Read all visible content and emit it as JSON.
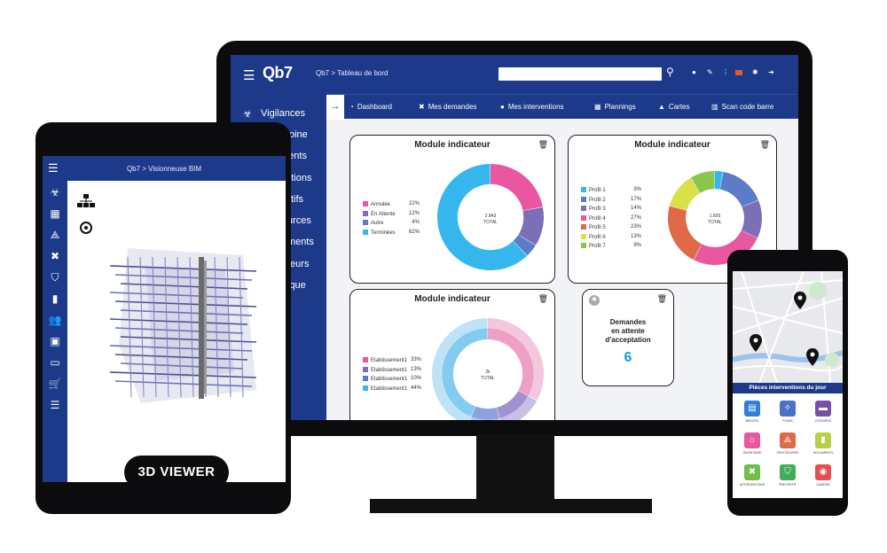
{
  "desktop": {
    "app": {
      "logo": "Qb7",
      "breadcrumb": "Qb7 > Tableau de bord",
      "search_placeholder": ""
    },
    "topbar_icons": [
      "chat-icon",
      "edit-icon",
      "more-icon",
      "flag-icon",
      "gear-icon",
      "logout-icon"
    ],
    "sidebar": [
      {
        "label": "Vigilances",
        "icon": "biohazard-icon"
      },
      {
        "label": "oine"
      },
      {
        "label": "ments"
      },
      {
        "label": "entions"
      },
      {
        "label": "tifs"
      },
      {
        "label": "urces"
      },
      {
        "label": "ments"
      },
      {
        "label": "teurs"
      },
      {
        "label": "ique"
      }
    ],
    "tabs": [
      {
        "label": "Dashboard",
        "icon": "dashboard-icon"
      },
      {
        "label": "Mes demandes",
        "icon": "tools-icon"
      },
      {
        "label": "Mes interventions",
        "icon": "user-gear-icon"
      },
      {
        "label": "Plannings",
        "icon": "calendar-icon"
      },
      {
        "label": "Cartes",
        "icon": "map-icon"
      },
      {
        "label": "Scan code barre",
        "icon": "barcode-icon"
      }
    ],
    "cards": [
      {
        "title": "Module indicateur",
        "center_value": "2.843",
        "center_label": "TOTAL",
        "chart_data": {
          "type": "pie",
          "categories": [
            "Annulée",
            "En Attente",
            "Autre",
            "Terminées"
          ],
          "values": [
            22,
            12,
            4,
            62
          ],
          "colors": [
            "#e8579f",
            "#7c6fb8",
            "#5b7dc8",
            "#35b7ee"
          ]
        }
      },
      {
        "title": "Module indicateur",
        "center_value": "1.605",
        "center_label": "TOTAL",
        "chart_data": {
          "type": "pie",
          "categories": [
            "Profil 1",
            "Profil 2",
            "Profil 3",
            "Profil 4",
            "Profil 5",
            "Profil 6",
            "Profil 7"
          ],
          "values": [
            3,
            17,
            14,
            27,
            23,
            13,
            9
          ],
          "colors": [
            "#35b7ee",
            "#5b7dc8",
            "#7c6fb8",
            "#e8579f",
            "#e06a48",
            "#d8e04a",
            "#8ac64a"
          ]
        }
      },
      {
        "title": "Module indicateur",
        "center_value": "2k",
        "center_label": "TOTAL",
        "chart_data": {
          "type": "pie",
          "categories": [
            "Etablissement1",
            "Etablissement1",
            "Etablissement1",
            "Etablissement1"
          ],
          "values": [
            33,
            13,
            10,
            44
          ],
          "colors": [
            "#e8579f",
            "#7c6fb8",
            "#5b7dc8",
            "#35b7ee"
          ]
        }
      }
    ],
    "demandes": {
      "line1": "Demandes",
      "line2": "en attente",
      "line3": "d'acceptation",
      "count": "6"
    }
  },
  "tablet": {
    "breadcrumb": "Qb7 > Visionneuse BIM",
    "side_icons": [
      "biohazard-icon",
      "building-icon",
      "compass-icon",
      "tools-icon",
      "shield-icon",
      "document-icon",
      "users-icon",
      "box-icon",
      "money-icon",
      "cart-icon",
      "list-icon"
    ],
    "viewer_button": "3D VIEWER"
  },
  "phone": {
    "section_title": "Pièces interventions du jour",
    "items": [
      {
        "label": "BADGES",
        "icon": "clipboard-icon",
        "color": "#2f7fd8"
      },
      {
        "label": "PLANS",
        "icon": "link-icon",
        "color": "#4a70c8"
      },
      {
        "label": "DOSSIERS",
        "icon": "folder-icon",
        "color": "#7a4ea6"
      },
      {
        "label": "INVENTAIRE",
        "icon": "warehouse-icon",
        "color": "#e8579f"
      },
      {
        "label": "PROCEDURES",
        "icon": "compass-icon",
        "color": "#e06a48"
      },
      {
        "label": "DOCUMENTS",
        "icon": "document-icon",
        "color": "#b8cf4a"
      },
      {
        "label": "INTERVENTIONS",
        "icon": "tools-icon",
        "color": "#6fbf4a"
      },
      {
        "label": "PREVENTIF",
        "icon": "shield-icon",
        "color": "#3fae5a"
      },
      {
        "label": "CAMERA",
        "icon": "camera-icon",
        "color": "#e05050"
      }
    ]
  }
}
